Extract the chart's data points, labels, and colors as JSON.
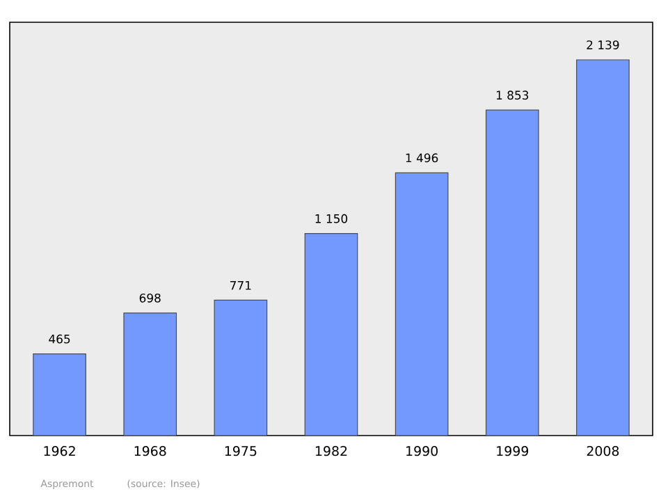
{
  "chart_data": {
    "type": "bar",
    "categories": [
      "1962",
      "1968",
      "1975",
      "1982",
      "1990",
      "1999",
      "2008"
    ],
    "values": [
      465,
      698,
      771,
      1150,
      1496,
      1853,
      2139
    ],
    "value_labels": [
      "465",
      "698",
      "771",
      "1 150",
      "1 496",
      "1 853",
      "2 139"
    ],
    "color": "#7399ff",
    "tick_labels": "x",
    "grid": false,
    "annotations": [
      "Aspremont",
      "(source: Insee)"
    ]
  }
}
